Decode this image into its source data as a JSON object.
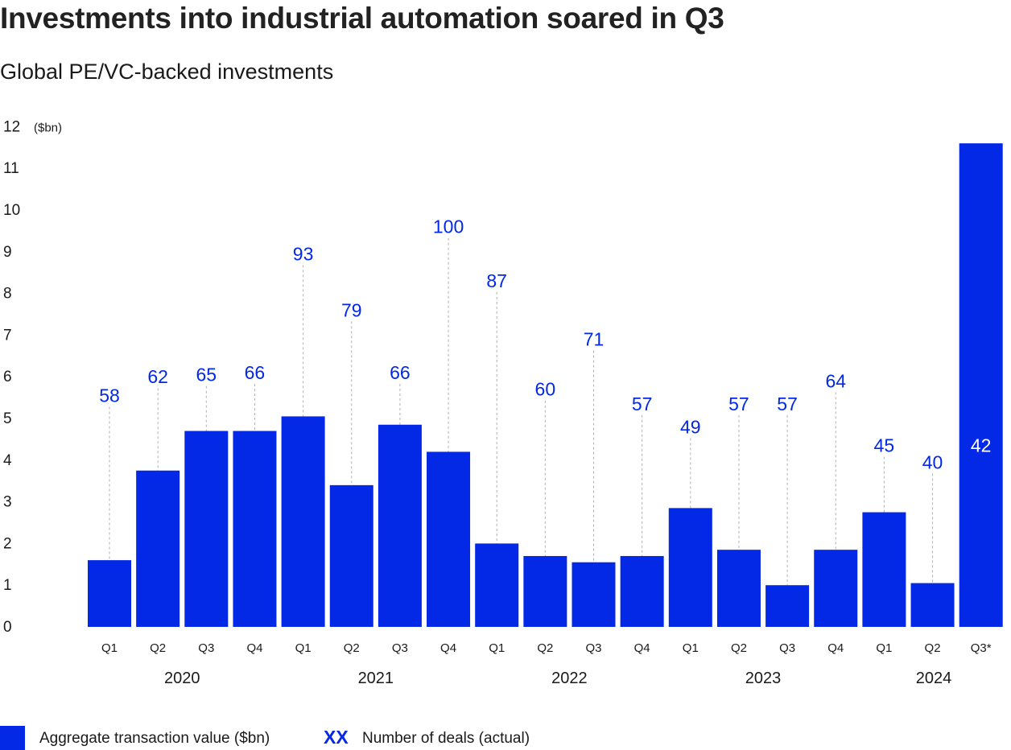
{
  "colors": {
    "bar": "#0328e6",
    "deal_label": "#0328e6",
    "bar_inner_label": "#ffffff",
    "leader_line": "#b0b0b0",
    "axis_text": "#1a1a1a"
  },
  "header": {
    "title": "Investments into industrial automation soared in Q3",
    "subtitle": "Global PE/VC-backed investments"
  },
  "legend": {
    "items": [
      {
        "label": "Aggregate transaction value ($bn)",
        "symbol": "swatch"
      },
      {
        "label": "Number of deals (actual)",
        "symbol": "XX"
      }
    ]
  },
  "chart_data": {
    "type": "bar",
    "title": "Global PE/VC-backed investments",
    "ylabel": "($bn)",
    "xlabel": "",
    "ylim": [
      0,
      12
    ],
    "yticks": [
      0,
      1,
      2,
      3,
      4,
      5,
      6,
      7,
      8,
      9,
      10,
      11,
      12
    ],
    "grid": false,
    "legend_position": "bottom-left",
    "categories": [
      "Q1",
      "Q2",
      "Q3",
      "Q4",
      "Q1",
      "Q2",
      "Q3",
      "Q4",
      "Q1",
      "Q2",
      "Q3",
      "Q4",
      "Q1",
      "Q2",
      "Q3",
      "Q4",
      "Q1",
      "Q2",
      "Q3*"
    ],
    "years": [
      {
        "label": "2020",
        "quarters": 4
      },
      {
        "label": "2021",
        "quarters": 4
      },
      {
        "label": "2022",
        "quarters": 4
      },
      {
        "label": "2023",
        "quarters": 4
      },
      {
        "label": "2024",
        "quarters": 3
      }
    ],
    "series": [
      {
        "name": "Aggregate transaction value ($bn)",
        "values": [
          1.6,
          3.75,
          4.7,
          4.7,
          5.05,
          3.4,
          4.85,
          4.2,
          2.0,
          1.7,
          1.55,
          1.7,
          2.85,
          1.85,
          1.0,
          1.85,
          2.75,
          1.05,
          11.6
        ]
      },
      {
        "name": "Number of deals (actual)",
        "values": [
          58,
          62,
          65,
          66,
          93,
          79,
          66,
          100,
          87,
          60,
          71,
          57,
          49,
          57,
          57,
          64,
          45,
          40,
          42
        ],
        "label_y": [
          5.55,
          6.0,
          6.05,
          6.1,
          8.95,
          7.6,
          6.1,
          9.6,
          8.3,
          5.7,
          6.9,
          5.35,
          4.8,
          5.35,
          5.35,
          5.9,
          4.35,
          3.95,
          4.35
        ],
        "inside_bar": [
          false,
          false,
          false,
          false,
          false,
          false,
          false,
          false,
          false,
          false,
          false,
          false,
          false,
          false,
          false,
          false,
          false,
          false,
          true
        ]
      }
    ]
  }
}
